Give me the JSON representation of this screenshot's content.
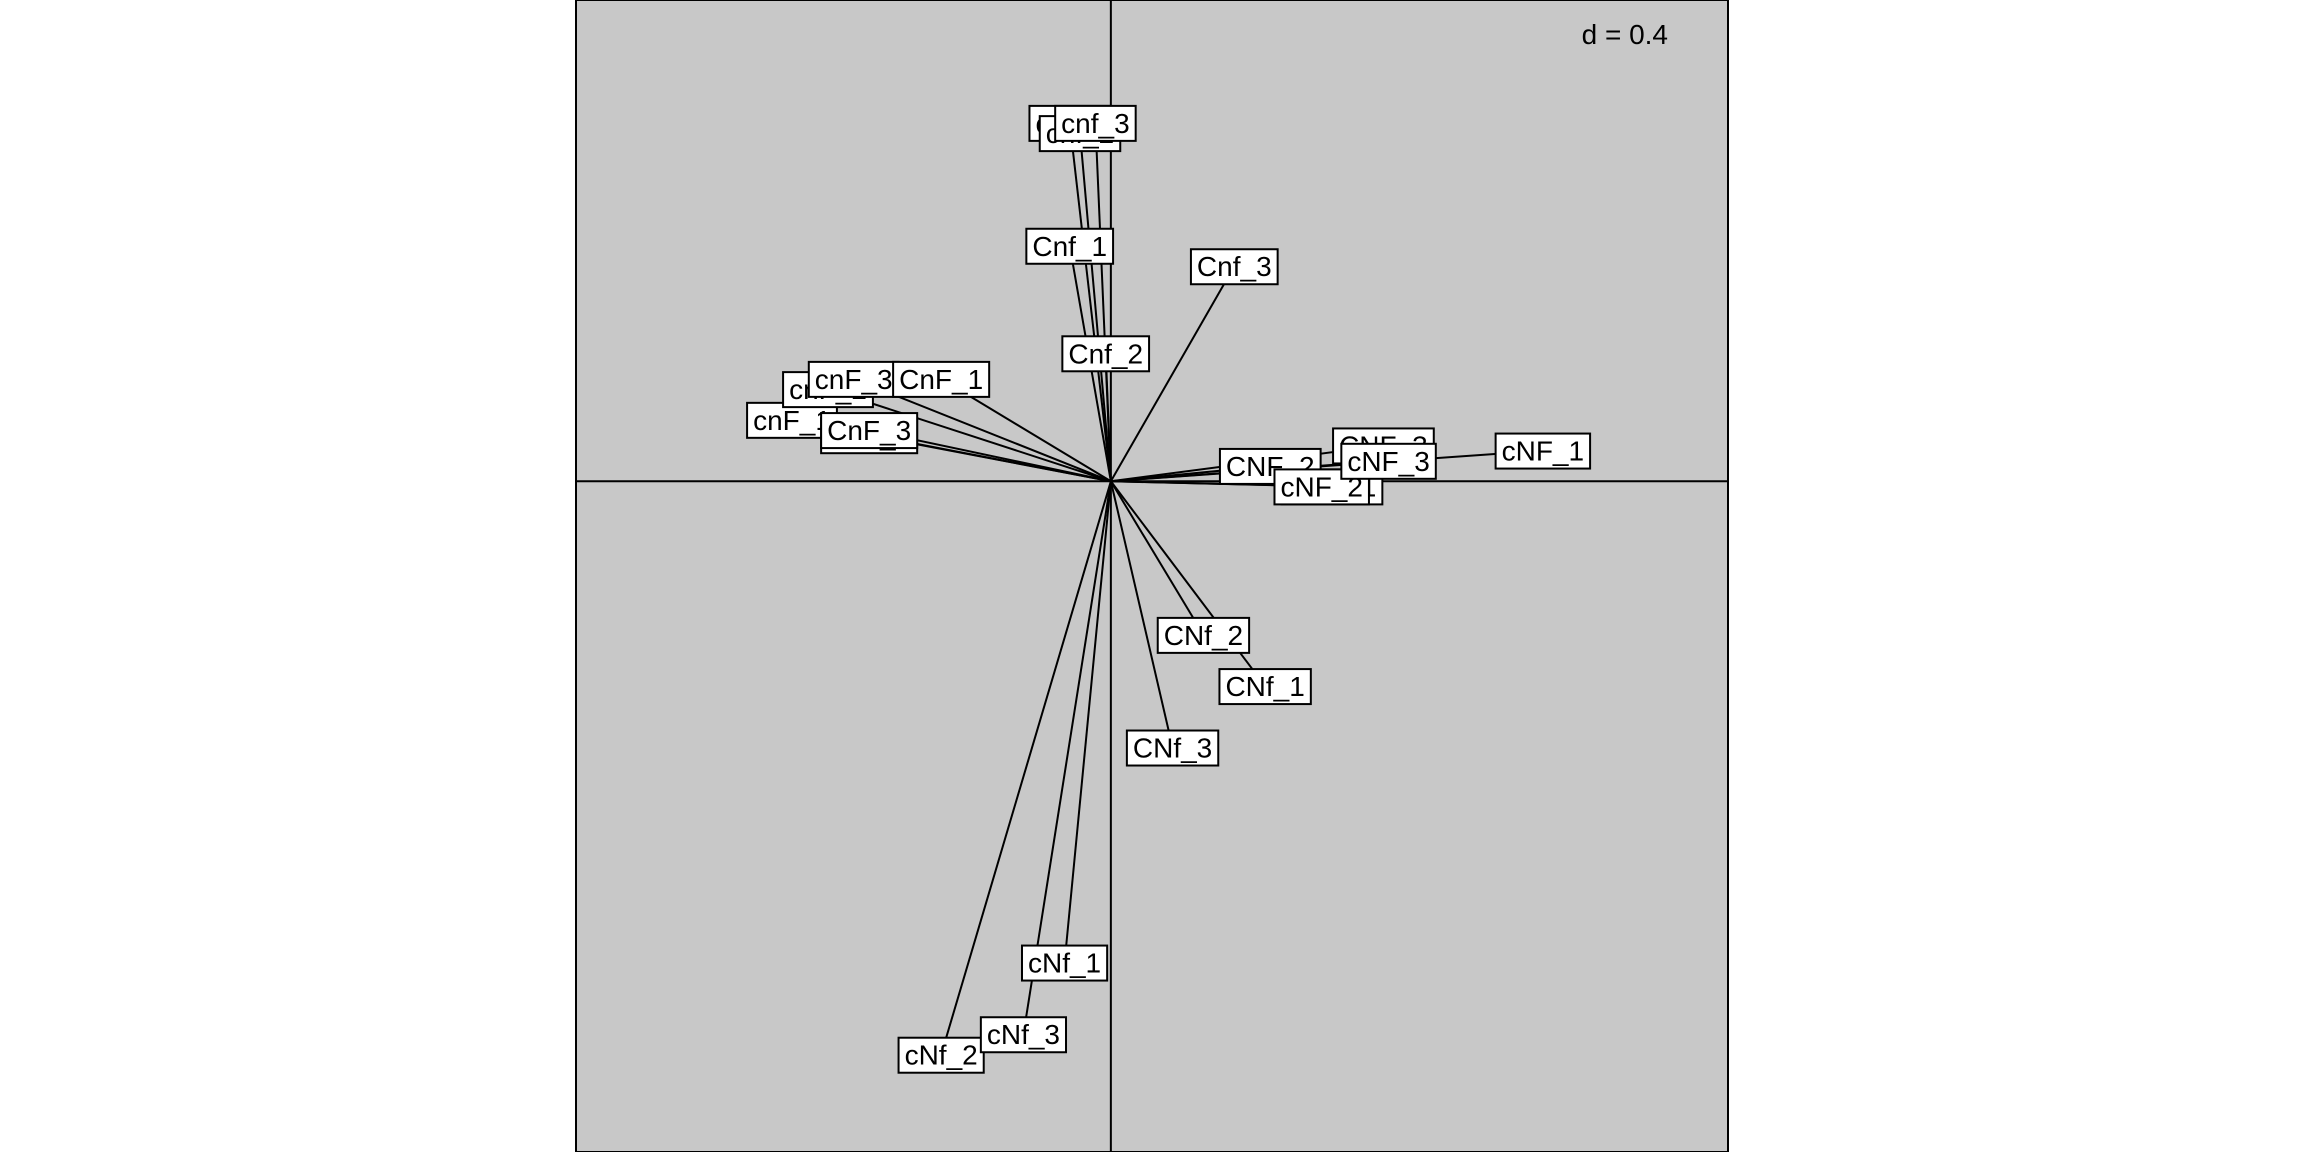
{
  "chart_data": {
    "type": "scatter",
    "subtype": "arrow-biplot",
    "title": "",
    "xlabel": "",
    "ylabel": "",
    "scale_label": "d = 0.4",
    "xlim": [
      -1.04,
      1.2
    ],
    "ylim": [
      -1.31,
      0.94
    ],
    "grid": false,
    "colors": {
      "panel": "#c8c8c8",
      "line": "#000000",
      "label_bg": "#ffffff"
    },
    "origin": [
      0,
      0
    ],
    "vectors": [
      {
        "label": "cnf_1",
        "x": -0.08,
        "y": 0.7
      },
      {
        "label": "cnf_2",
        "x": -0.06,
        "y": 0.68
      },
      {
        "label": "cnf_3",
        "x": -0.03,
        "y": 0.7
      },
      {
        "label": "Cnf_1",
        "x": -0.08,
        "y": 0.46
      },
      {
        "label": "Cnf_2",
        "x": -0.01,
        "y": 0.25
      },
      {
        "label": "Cnf_3",
        "x": 0.24,
        "y": 0.42
      },
      {
        "label": "cnF_1",
        "x": -0.62,
        "y": 0.12
      },
      {
        "label": "cnF_2",
        "x": -0.55,
        "y": 0.18
      },
      {
        "label": "cnF_3",
        "x": -0.5,
        "y": 0.2
      },
      {
        "label": "CnF_1",
        "x": -0.33,
        "y": 0.2
      },
      {
        "label": "CnF_2",
        "x": -0.47,
        "y": 0.09
      },
      {
        "label": "CnF_3",
        "x": -0.47,
        "y": 0.1
      },
      {
        "label": "CNF_1",
        "x": 0.43,
        "y": -0.01
      },
      {
        "label": "CNF_2",
        "x": 0.31,
        "y": 0.03
      },
      {
        "label": "CNF_3",
        "x": 0.53,
        "y": 0.07
      },
      {
        "label": "cNF_1",
        "x": 0.84,
        "y": 0.06
      },
      {
        "label": "cNF_2",
        "x": 0.41,
        "y": -0.01
      },
      {
        "label": "cNF_3",
        "x": 0.54,
        "y": 0.04
      },
      {
        "label": "CNf_1",
        "x": 0.3,
        "y": -0.4
      },
      {
        "label": "CNf_2",
        "x": 0.18,
        "y": -0.3
      },
      {
        "label": "CNf_3",
        "x": 0.12,
        "y": -0.52
      },
      {
        "label": "cNf_1",
        "x": -0.09,
        "y": -0.94
      },
      {
        "label": "cNf_2",
        "x": -0.33,
        "y": -1.12
      },
      {
        "label": "cNf_3",
        "x": -0.17,
        "y": -1.08
      }
    ]
  }
}
